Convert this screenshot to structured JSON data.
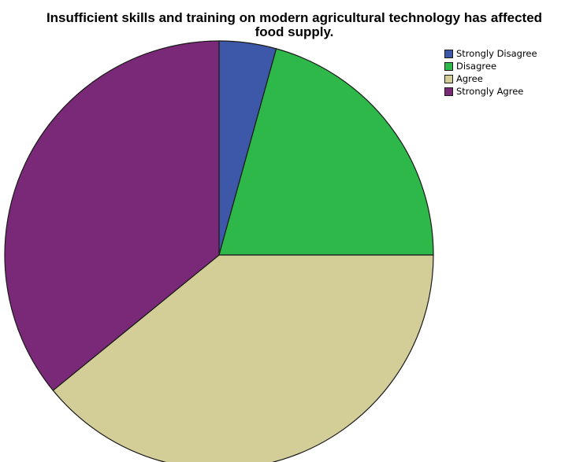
{
  "chart_data": {
    "type": "pie",
    "title": "Insufficient skills and training on modern agricultural technology has affected food supply.",
    "categories": [
      "Strongly Disagree",
      "Disagree",
      "Agree",
      "Strongly Agree"
    ],
    "values": [
      4.3,
      20.7,
      39.1,
      35.9
    ],
    "colors": [
      "#3d58a8",
      "#2eb84a",
      "#d3ce98",
      "#7a2878"
    ],
    "legend": "top-right",
    "start_angle": "12 o'clock",
    "direction": "clockwise"
  }
}
